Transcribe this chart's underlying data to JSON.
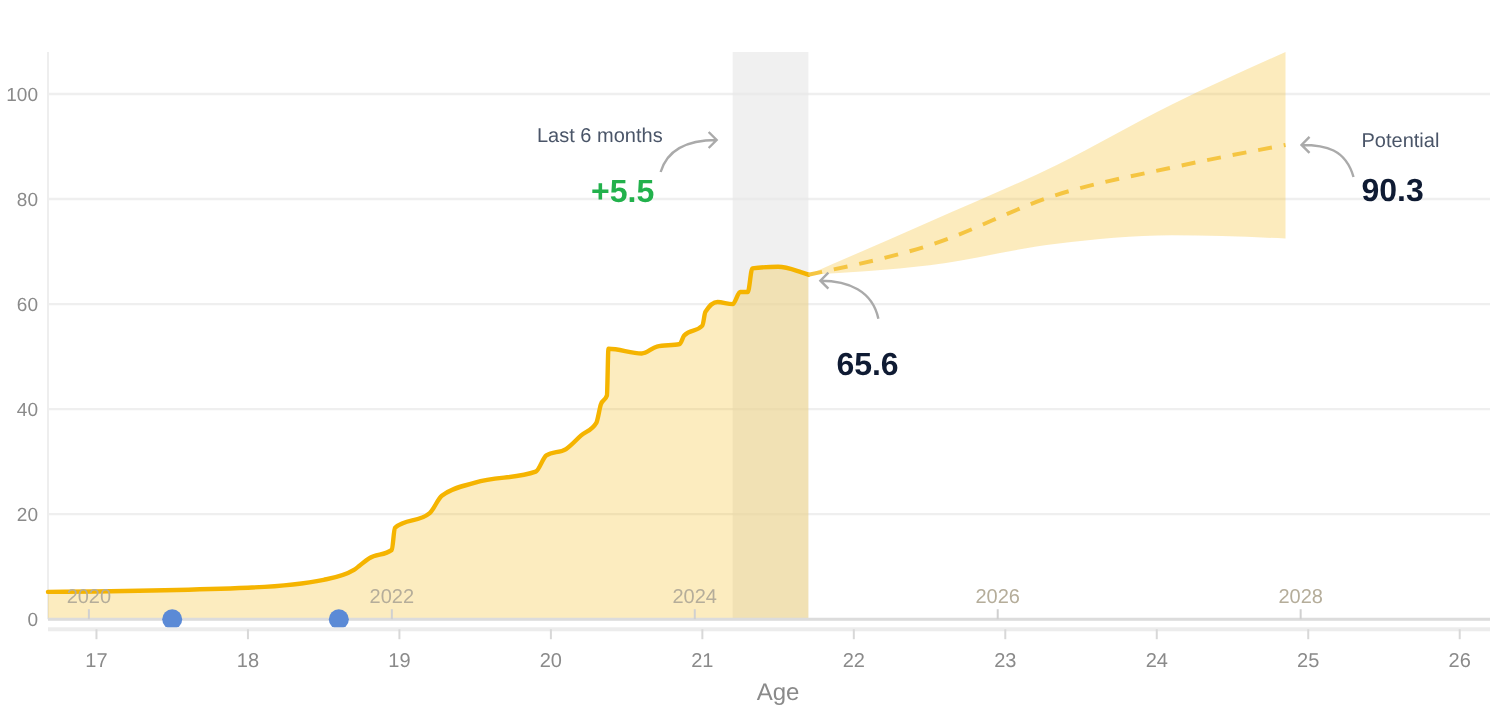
{
  "chart_data": {
    "type": "area",
    "xlabel": "Age",
    "xlim": [
      16.68,
      26.2
    ],
    "xticks": [
      17,
      18,
      19,
      20,
      21,
      22,
      23,
      24,
      25,
      26
    ],
    "x2lim": [
      2019.73,
      2029.25
    ],
    "x2ticks": [
      2020,
      2022,
      2024,
      2026,
      2028
    ],
    "ylim": [
      0,
      108
    ],
    "yticks": [
      0,
      20,
      40,
      60,
      80,
      100
    ],
    "grid": "y",
    "bands": [
      {
        "axis": "x",
        "from": 21.2,
        "to": 21.7,
        "color": "#e6e6e6"
      }
    ],
    "series": [
      {
        "color": "#f5b400",
        "x": [
          16.68,
          18.0,
          18.5,
          18.7,
          18.8,
          18.95,
          18.97,
          19.2,
          19.28,
          19.5,
          19.9,
          19.97,
          20.1,
          20.2,
          20.3,
          20.33,
          20.37,
          20.38,
          20.6,
          20.7,
          20.85,
          20.88,
          21.0,
          21.02,
          21.1,
          21.2,
          21.25,
          21.3,
          21.33,
          21.5,
          21.65,
          21.7
        ],
        "values": [
          5.2,
          6.0,
          7.5,
          9.4,
          11.6,
          13.2,
          17.4,
          20.2,
          23.5,
          26,
          28.1,
          31.2,
          32.4,
          35,
          37.4,
          40.9,
          42.6,
          51.5,
          50.6,
          51.9,
          52.4,
          54,
          55.9,
          58.5,
          60.4,
          60,
          62.3,
          62.3,
          66.8,
          67.1,
          66.1,
          65.6
        ]
      },
      {
        "type": "line",
        "line_style": "dashed",
        "color": "#f5c542",
        "x": [
          21.7,
          22.5,
          23.34,
          24.1,
          24.85
        ],
        "values": [
          65.6,
          71.2,
          80.8,
          86,
          90.3
        ],
        "lower": [
          65.6,
          67.4,
          71.5,
          73.1,
          72.5
        ],
        "upper": [
          65.6,
          75.7,
          86.5,
          98,
          108
        ]
      },
      {
        "type": "scatter",
        "marker": "circle",
        "color": "#5b8ad6",
        "x": [
          17.5,
          18.6
        ],
        "values": [
          0,
          0
        ]
      }
    ],
    "annotations": [
      "Last 6 months",
      "+5.5",
      "Potential",
      {
        "text": "90.3",
        "x": 24.85,
        "y": 90.3
      },
      {
        "text": "65.6",
        "x": 21.7,
        "y": 65.6
      }
    ]
  }
}
